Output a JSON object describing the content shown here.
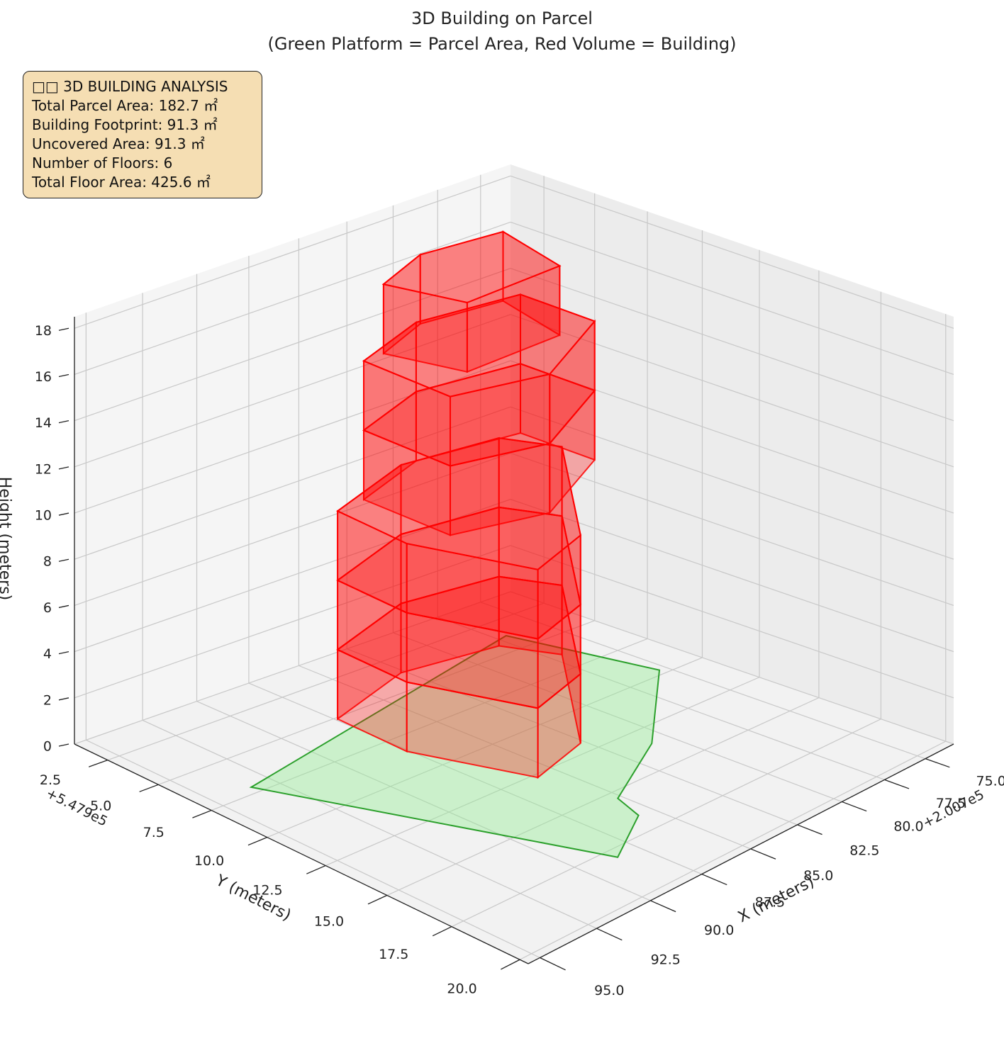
{
  "chart_data": {
    "type": "3d-polygons",
    "title": "3D Building on Parcel",
    "subtitle": "(Green Platform = Parcel Area, Red Volume = Building)",
    "xlabel": "X (meters)",
    "ylabel": "Y (meters)",
    "zlabel": "Height (meters)",
    "x_offset": "+2.007e5",
    "y_offset": "+5.479e5",
    "xlim": [
      73.2,
      95.5
    ],
    "ylim": [
      0.8,
      20.3
    ],
    "zlim": [
      0,
      18.5
    ],
    "xticks": [
      {
        "value": 75,
        "label": "75.0"
      },
      77.5,
      {
        "value": 80,
        "label": "80.0"
      },
      82.5,
      {
        "value": 85,
        "label": "85.0"
      },
      87.5,
      {
        "value": 90,
        "label": "90.0"
      },
      92.5,
      {
        "value": 95,
        "label": "95.0"
      }
    ],
    "yticks": [
      2.5,
      {
        "value": 5,
        "label": "5.0"
      },
      7.5,
      {
        "value": 10,
        "label": "10.0"
      },
      12.5,
      {
        "value": 15,
        "label": "15.0"
      },
      17.5,
      {
        "value": 20,
        "label": "20.0"
      }
    ],
    "zticks": [
      0,
      2,
      4,
      6,
      8,
      10,
      12,
      14,
      16,
      18
    ],
    "grid": true,
    "parcel": {
      "color": "#2ca02c",
      "fill": "#90ee90",
      "x": [
        93.4,
        77.0,
        75.4,
        80.9,
        85.2,
        85.7,
        88.5
      ],
      "y": [
        7.1,
        3.8,
        9.7,
        13.5,
        15.4,
        16.6,
        17.95
      ]
    },
    "building_color": "#ff0000",
    "floors": [
      {
        "z": [
          0,
          3
        ],
        "x": [
          87.4,
          87.6,
          85.9,
          82.7,
          76.9,
          78.0,
          82.7
        ],
        "y": [
          5.1,
          8.5,
          12.7,
          11.9,
          6.4,
          4.3,
          3.7
        ]
      },
      {
        "z": [
          3,
          6
        ],
        "x": [
          87.4,
          87.6,
          85.9,
          82.7,
          76.9,
          78.0,
          82.7
        ],
        "y": [
          5.1,
          8.5,
          12.7,
          11.9,
          6.4,
          4.3,
          3.7
        ]
      },
      {
        "z": [
          6,
          9
        ],
        "x": [
          87.4,
          87.6,
          85.9,
          82.7,
          76.9,
          78.0,
          82.7
        ],
        "y": [
          5.1,
          8.5,
          12.7,
          11.9,
          6.4,
          4.3,
          3.7
        ]
      },
      {
        "z": [
          9,
          12
        ],
        "x": [
          86,
          86,
          82,
          77,
          77,
          82
        ],
        "y": [
          5,
          9,
          10,
          8,
          4.5,
          3.8
        ]
      },
      {
        "z": [
          12,
          15
        ],
        "x": [
          86,
          86,
          82,
          77,
          77,
          82
        ],
        "y": [
          5,
          9,
          10,
          8,
          4.5,
          3.8
        ]
      },
      {
        "z": [
          15,
          18
        ],
        "x": [
          85,
          84,
          79,
          78,
          82
        ],
        "y": [
          5,
          8,
          8,
          4.5,
          4
        ]
      }
    ]
  },
  "info": {
    "title": "□□ 3D BUILDING ANALYSIS",
    "lines": [
      "Total Parcel Area: 182.7 ㎡",
      "Building Footprint: 91.3 ㎡",
      "Uncovered Area: 91.3 ㎡",
      "Number of Floors: 6",
      "Total Floor Area: 425.6 ㎡"
    ]
  }
}
